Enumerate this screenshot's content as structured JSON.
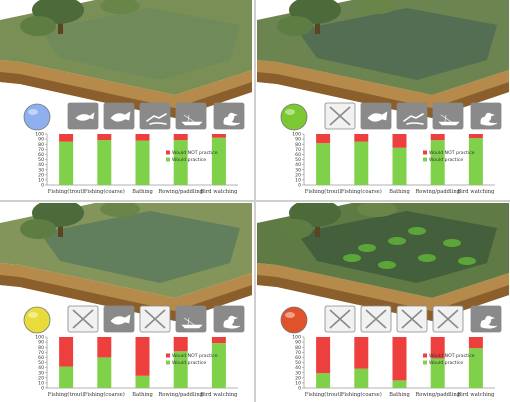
{
  "colors": {
    "would_practice": "#7fd14a",
    "would_not_practice": "#ee3f3f"
  },
  "panels": [
    {
      "quality_indicator_color": "#8fb0ee",
      "activity_icons": [
        "fishing-trout-icon",
        "fishing-coarse-icon",
        "bathing-icon",
        "rowing-paddling-icon",
        "birdwatching-icon"
      ],
      "crossed_out": [
        false,
        false,
        false,
        false,
        false
      ]
    },
    {
      "quality_indicator_color": "#7cc832",
      "activity_icons": [
        "crossed-out-icon",
        "fishing-coarse-icon",
        "bathing-icon",
        "rowing-paddling-icon",
        "birdwatching-icon"
      ],
      "crossed_out": [
        true,
        false,
        false,
        false,
        false
      ]
    },
    {
      "quality_indicator_color": "#e8dc3a",
      "activity_icons": [
        "crossed-out-icon",
        "fishing-coarse-icon",
        "crossed-out-icon",
        "rowing-paddling-icon",
        "birdwatching-icon"
      ],
      "crossed_out": [
        true,
        false,
        true,
        false,
        false
      ]
    },
    {
      "quality_indicator_color": "#e0522c",
      "activity_icons": [
        "crossed-out-icon",
        "crossed-out-icon",
        "crossed-out-icon",
        "crossed-out-icon",
        "birdwatching-icon"
      ],
      "crossed_out": [
        true,
        true,
        true,
        true,
        false
      ]
    }
  ],
  "chart_data": [
    {
      "type": "bar",
      "stacked": true,
      "categories": [
        "Fishing(trout)",
        "Fishing(coarse)",
        "Bathing",
        "Rowing/paddling",
        "Bird watching"
      ],
      "series": [
        {
          "name": "Would practice",
          "values": [
            85,
            88,
            87,
            88,
            93
          ]
        },
        {
          "name": "Would NOT practice",
          "values": [
            15,
            12,
            13,
            12,
            7
          ]
        }
      ],
      "ylim": [
        0,
        100
      ],
      "yticks": [
        0,
        10,
        20,
        30,
        40,
        50,
        60,
        70,
        80,
        90,
        100
      ],
      "legend": [
        "Would NOT practice",
        "Would practice"
      ],
      "legend_position": "right"
    },
    {
      "type": "bar",
      "stacked": true,
      "categories": [
        "Fishing(trout)",
        "Fishing(coarse)",
        "Bathing",
        "Rowing/paddling",
        "Bird watching"
      ],
      "series": [
        {
          "name": "Would practice",
          "values": [
            82,
            85,
            73,
            88,
            92
          ]
        },
        {
          "name": "Would NOT practice",
          "values": [
            18,
            15,
            27,
            12,
            8
          ]
        }
      ],
      "ylim": [
        0,
        100
      ],
      "yticks": [
        0,
        10,
        20,
        30,
        40,
        50,
        60,
        70,
        80,
        90,
        100
      ],
      "legend": [
        "Would NOT practice",
        "Would practice"
      ],
      "legend_position": "right"
    },
    {
      "type": "bar",
      "stacked": true,
      "categories": [
        "Fishing(trout)",
        "Fishing(coarse)",
        "Bathing",
        "Rowing/paddling",
        "Bird watching"
      ],
      "series": [
        {
          "name": "Would practice",
          "values": [
            42,
            60,
            24,
            72,
            88
          ]
        },
        {
          "name": "Would NOT practice",
          "values": [
            58,
            40,
            76,
            28,
            12
          ]
        }
      ],
      "ylim": [
        0,
        100
      ],
      "yticks": [
        0,
        10,
        20,
        30,
        40,
        50,
        60,
        70,
        80,
        90,
        100
      ],
      "legend": [
        "Would NOT practice",
        "Would practice"
      ],
      "legend_position": "right"
    },
    {
      "type": "bar",
      "stacked": true,
      "categories": [
        "Fishing(trout)",
        "Fishing(coarse)",
        "Bathing",
        "Rowing/paddling",
        "Bird watching"
      ],
      "series": [
        {
          "name": "Would practice",
          "values": [
            29,
            38,
            15,
            58,
            78
          ]
        },
        {
          "name": "Would NOT practice",
          "values": [
            71,
            62,
            85,
            42,
            22
          ]
        }
      ],
      "ylim": [
        0,
        100
      ],
      "yticks": [
        0,
        10,
        20,
        30,
        40,
        50,
        60,
        70,
        80,
        90,
        100
      ],
      "legend": [
        "Would NOT practice",
        "Would practice"
      ],
      "legend_position": "right"
    }
  ]
}
